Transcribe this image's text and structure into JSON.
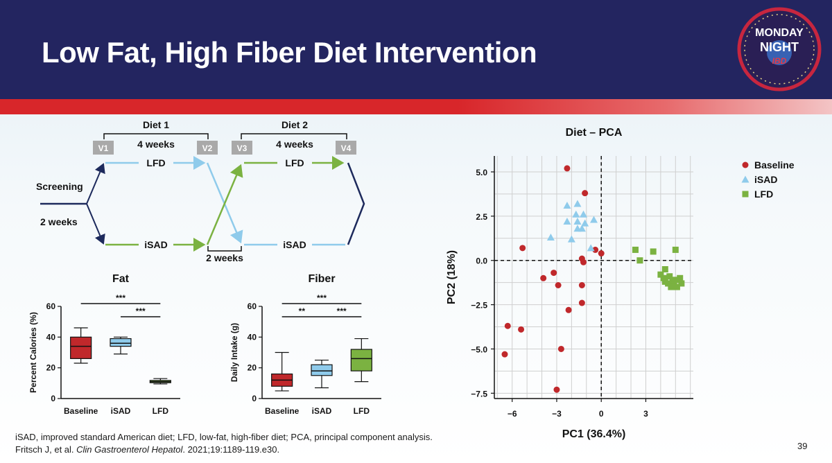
{
  "slide": {
    "title": "Low Fat, High Fiber Diet Intervention",
    "logo": {
      "line1": "MONDAY",
      "line2": "NIGHT",
      "line3": "IBD"
    },
    "footnote_line1": "iSAD, improved standard American diet; LFD, low-fat, high-fiber diet; PCA, principal component analysis.",
    "footnote_line2_prefix": "Fritsch J, et al. ",
    "footnote_line2_journal": "Clin Gastroenterol Hepatol",
    "footnote_line2_suffix": ". 2021;19:1189-119.e30.",
    "page_number": "39"
  },
  "design": {
    "diet1_label": "Diet 1",
    "diet1_duration": "4 weeks",
    "diet2_label": "Diet 2",
    "diet2_duration": "4 weeks",
    "visits": [
      "V1",
      "V2",
      "V3",
      "V4"
    ],
    "screening_label": "Screening",
    "screening_duration": "2 weeks",
    "washout_label": "2 weeks",
    "arm1_diet1": "LFD",
    "arm2_diet1": "iSAD",
    "arm1_diet2": "LFD",
    "arm2_diet2": "iSAD"
  },
  "colors": {
    "header_bg": "#232560",
    "accent_red": "#d8262a",
    "baseline": "#c0282b",
    "isad": "#8fcbeb",
    "lfd": "#7bb241",
    "navy": "#1d2a5c"
  },
  "chart_data": [
    {
      "type": "box",
      "title": "Fat",
      "ylabel": "Percent Calories (%)",
      "categories": [
        "Baseline",
        "iSAD",
        "LFD"
      ],
      "ylim": [
        0,
        60
      ],
      "yticks": [
        0,
        20,
        40,
        60
      ],
      "boxes": [
        {
          "min": 23,
          "q1": 26,
          "median": 34,
          "q3": 40,
          "max": 46
        },
        {
          "min": 29,
          "q1": 34,
          "median": 36,
          "q3": 39,
          "max": 40
        },
        {
          "min": 9.5,
          "q1": 10.3,
          "median": 11,
          "q3": 11.8,
          "max": 13
        }
      ],
      "significance": [
        {
          "from": 0,
          "to": 2,
          "label": "***"
        },
        {
          "from": 1,
          "to": 2,
          "label": "***"
        }
      ]
    },
    {
      "type": "box",
      "title": "Fiber",
      "ylabel": "Daily Intake (g)",
      "categories": [
        "Baseline",
        "iSAD",
        "LFD"
      ],
      "ylim": [
        0,
        60
      ],
      "yticks": [
        0,
        20,
        40,
        60
      ],
      "boxes": [
        {
          "min": 5,
          "q1": 8,
          "median": 12,
          "q3": 16,
          "max": 30
        },
        {
          "min": 7,
          "q1": 15,
          "median": 18,
          "q3": 22,
          "max": 25
        },
        {
          "min": 11,
          "q1": 18,
          "median": 26,
          "q3": 32,
          "max": 39
        }
      ],
      "significance": [
        {
          "from": 0,
          "to": 2,
          "label": "***"
        },
        {
          "from": 0,
          "to": 1,
          "label": "**"
        },
        {
          "from": 1,
          "to": 2,
          "label": "***"
        }
      ]
    },
    {
      "type": "scatter",
      "title": "Diet – PCA",
      "xlabel": "PC1 (36.4%)",
      "ylabel": "PC2 (18%)",
      "xlim": [
        -7.2,
        6.2
      ],
      "ylim": [
        -7.8,
        5.9
      ],
      "xticks": [
        -6,
        -3,
        0,
        3
      ],
      "xtick_labels": [
        "−6",
        "−3",
        "0",
        "3"
      ],
      "yticks": [
        5.0,
        2.5,
        0.0,
        -2.5,
        -5.0,
        -7.5
      ],
      "ytick_labels": [
        "5.0",
        "2.5",
        "0.0",
        "−2.5",
        "−5.0",
        "−7.5"
      ],
      "legend_position": "top-right",
      "series": [
        {
          "name": "Baseline",
          "marker": "circle",
          "points": [
            [
              -2.3,
              5.2
            ],
            [
              -1.1,
              3.8
            ],
            [
              -5.3,
              0.7
            ],
            [
              0.0,
              0.4
            ],
            [
              -0.4,
              0.6
            ],
            [
              -1.3,
              0.1
            ],
            [
              -1.2,
              -0.1
            ],
            [
              -3.2,
              -0.7
            ],
            [
              -3.9,
              -1.0
            ],
            [
              -2.9,
              -1.4
            ],
            [
              -1.3,
              -1.4
            ],
            [
              -1.3,
              -2.4
            ],
            [
              -2.2,
              -2.8
            ],
            [
              -6.3,
              -3.7
            ],
            [
              -5.4,
              -3.9
            ],
            [
              -2.7,
              -5.0
            ],
            [
              -6.5,
              -5.3
            ],
            [
              -3.0,
              -7.3
            ]
          ]
        },
        {
          "name": "iSAD",
          "marker": "triangle",
          "points": [
            [
              -2.3,
              3.1
            ],
            [
              -1.6,
              3.2
            ],
            [
              -1.7,
              2.6
            ],
            [
              -1.2,
              2.6
            ],
            [
              -2.3,
              2.2
            ],
            [
              -1.6,
              2.2
            ],
            [
              -1.1,
              2.1
            ],
            [
              -0.5,
              2.3
            ],
            [
              -1.6,
              1.8
            ],
            [
              -1.3,
              1.8
            ],
            [
              -3.4,
              1.3
            ],
            [
              -2.0,
              1.2
            ],
            [
              -0.7,
              0.7
            ]
          ]
        },
        {
          "name": "LFD",
          "marker": "square",
          "points": [
            [
              2.3,
              0.6
            ],
            [
              3.5,
              0.5
            ],
            [
              5.0,
              0.6
            ],
            [
              2.6,
              0.0
            ],
            [
              4.0,
              -0.8
            ],
            [
              4.3,
              -0.5
            ],
            [
              4.6,
              -0.9
            ],
            [
              4.2,
              -1.0
            ],
            [
              4.8,
              -1.1
            ],
            [
              5.2,
              -1.1
            ],
            [
              4.5,
              -1.3
            ],
            [
              4.9,
              -1.4
            ],
            [
              5.4,
              -1.3
            ],
            [
              4.7,
              -1.5
            ],
            [
              5.1,
              -1.5
            ],
            [
              4.3,
              -1.2
            ],
            [
              5.3,
              -1.0
            ]
          ]
        }
      ]
    }
  ]
}
